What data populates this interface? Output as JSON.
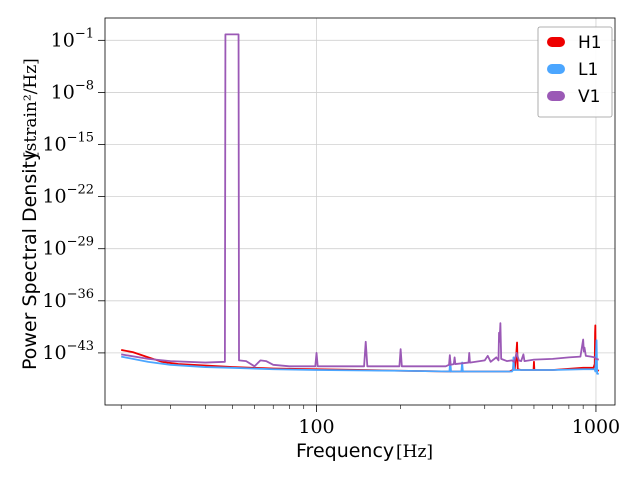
{
  "chart_data": {
    "type": "line",
    "xscale": "log",
    "yscale": "log",
    "xlim": [
      17.5,
      1170
    ],
    "ylim": [
      1e-50,
      100.0
    ],
    "xlabel": "Frequency",
    "xlabel_unit": "[Hz]",
    "ylabel": "Power Spectral Density",
    "ylabel_unit": "[strain²/Hz]",
    "xticks": [
      {
        "value": 100,
        "label": "100"
      },
      {
        "value": 1000,
        "label": "1000"
      }
    ],
    "yticks": [
      {
        "value": 0.1,
        "mant": "10",
        "exp": "−1"
      },
      {
        "value": 1e-08,
        "mant": "10",
        "exp": "−8"
      },
      {
        "value": 1e-15,
        "mant": "10",
        "exp": "−15"
      },
      {
        "value": 1e-22,
        "mant": "10",
        "exp": "−22"
      },
      {
        "value": 1e-29,
        "mant": "10",
        "exp": "−29"
      },
      {
        "value": 1e-36,
        "mant": "10",
        "exp": "−36"
      },
      {
        "value": 1e-43,
        "mant": "10",
        "exp": "−43"
      }
    ],
    "grid": true,
    "legend_position": "top-right",
    "series": [
      {
        "name": "H1",
        "color": "#ee0000",
        "points": [
          [
            20,
            -42.6
          ],
          [
            22,
            -42.9
          ],
          [
            25,
            -43.6
          ],
          [
            28,
            -44.2
          ],
          [
            32,
            -44.5
          ],
          [
            40,
            -44.7
          ],
          [
            50,
            -44.9
          ],
          [
            70,
            -45.1
          ],
          [
            100,
            -45.2
          ],
          [
            150,
            -45.3
          ],
          [
            200,
            -45.4
          ],
          [
            300,
            -45.5
          ],
          [
            400,
            -45.5
          ],
          [
            490,
            -45.5
          ],
          [
            505,
            -45.3
          ],
          [
            508,
            -44.0
          ],
          [
            512,
            -45.2
          ],
          [
            518,
            -43.5
          ],
          [
            522,
            -41.6
          ],
          [
            525,
            -45.2
          ],
          [
            540,
            -45.3
          ],
          [
            598,
            -45.3
          ],
          [
            600,
            -44.2
          ],
          [
            602,
            -45.3
          ],
          [
            700,
            -45.3
          ],
          [
            900,
            -45.0
          ],
          [
            980,
            -45.0
          ],
          [
            990,
            -44.5
          ],
          [
            993,
            -40.3
          ],
          [
            995,
            -39.3
          ],
          [
            998,
            -44.8
          ],
          [
            1010,
            -45.3
          ],
          [
            1024,
            -45.4
          ]
        ]
      },
      {
        "name": "L1",
        "color": "#4ba6ff",
        "points": [
          [
            20,
            -43.5
          ],
          [
            25,
            -44.2
          ],
          [
            30,
            -44.6
          ],
          [
            40,
            -44.9
          ],
          [
            50,
            -45.0
          ],
          [
            70,
            -45.2
          ],
          [
            100,
            -45.3
          ],
          [
            200,
            -45.4
          ],
          [
            299,
            -45.5
          ],
          [
            301,
            -44.1
          ],
          [
            303,
            -45.5
          ],
          [
            330,
            -45.5
          ],
          [
            332,
            -44.3
          ],
          [
            334,
            -45.5
          ],
          [
            500,
            -45.5
          ],
          [
            505,
            -45.3
          ],
          [
            507,
            -43.6
          ],
          [
            510,
            -45.3
          ],
          [
            560,
            -45.3
          ],
          [
            700,
            -45.3
          ],
          [
            900,
            -45.2
          ],
          [
            990,
            -45.2
          ],
          [
            995,
            -45.5
          ],
          [
            1005,
            -41.3
          ],
          [
            1010,
            -45.8
          ],
          [
            1024,
            -45.8
          ]
        ]
      },
      {
        "name": "V1",
        "color": "#9b59b6",
        "points": [
          [
            20,
            -43.2
          ],
          [
            25,
            -43.8
          ],
          [
            30,
            -44.1
          ],
          [
            40,
            -44.3
          ],
          [
            47,
            -44.2
          ],
          [
            47.2,
            -0.2
          ],
          [
            52.6,
            -0.2
          ],
          [
            52.8,
            -44.0
          ],
          [
            56,
            -44.1
          ],
          [
            60,
            -44.8
          ],
          [
            63,
            -44.0
          ],
          [
            66,
            -44.1
          ],
          [
            70,
            -44.6
          ],
          [
            80,
            -44.8
          ],
          [
            99,
            -44.8
          ],
          [
            100,
            -43.0
          ],
          [
            101,
            -44.8
          ],
          [
            148,
            -44.8
          ],
          [
            150,
            -41.5
          ],
          [
            152,
            -44.8
          ],
          [
            198,
            -44.8
          ],
          [
            200,
            -42.5
          ],
          [
            202,
            -44.8
          ],
          [
            290,
            -44.8
          ],
          [
            298,
            -44.6
          ],
          [
            300,
            -43.3
          ],
          [
            302,
            -44.6
          ],
          [
            310,
            -44.5
          ],
          [
            312,
            -43.6
          ],
          [
            314,
            -44.5
          ],
          [
            350,
            -44.3
          ],
          [
            352,
            -43.0
          ],
          [
            354,
            -44.3
          ],
          [
            400,
            -44.0
          ],
          [
            410,
            -43.4
          ],
          [
            420,
            -44.2
          ],
          [
            440,
            -43.6
          ],
          [
            448,
            -44.0
          ],
          [
            450,
            -40.3
          ],
          [
            452,
            -41.5
          ],
          [
            455,
            -39.0
          ],
          [
            458,
            -43.8
          ],
          [
            480,
            -44.1
          ],
          [
            500,
            -44.0
          ],
          [
            510,
            -44.2
          ],
          [
            520,
            -43.0
          ],
          [
            530,
            -44.0
          ],
          [
            540,
            -44.1
          ],
          [
            550,
            -43.2
          ],
          [
            555,
            -44.1
          ],
          [
            600,
            -43.9
          ],
          [
            700,
            -43.8
          ],
          [
            800,
            -43.6
          ],
          [
            880,
            -43.5
          ],
          [
            900,
            -41.2
          ],
          [
            905,
            -42.8
          ],
          [
            910,
            -42.3
          ],
          [
            920,
            -43.4
          ],
          [
            960,
            -43.5
          ],
          [
            990,
            -43.6
          ],
          [
            1000,
            -43.8
          ],
          [
            1024,
            -43.9
          ]
        ]
      }
    ]
  }
}
